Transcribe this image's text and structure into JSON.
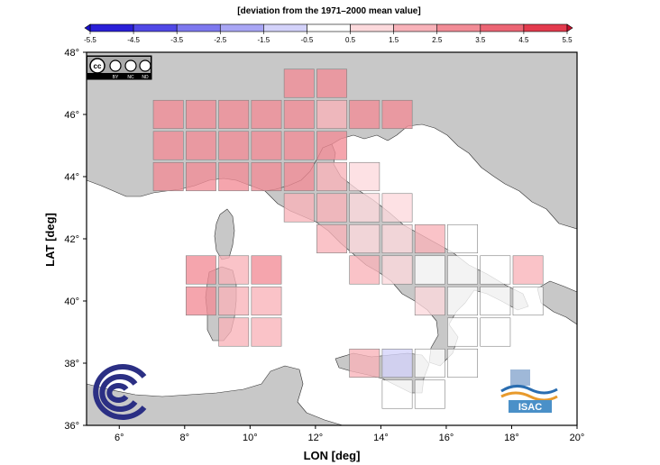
{
  "colorbar": {
    "title": "[deviation from the 1971–2000 mean value]",
    "tick_labels": [
      "-5.5",
      "-4.5",
      "-3.5",
      "-2.5",
      "-1.5",
      "-0.5",
      "0.5",
      "1.5",
      "2.5",
      "3.5",
      "4.5",
      "5.5"
    ],
    "colors": [
      "#2a1fd8",
      "#5048e6",
      "#7d78ef",
      "#a9a6f5",
      "#d3d2fa",
      "#ffffff",
      "#fcd9dc",
      "#f8b2b9",
      "#f28c96",
      "#ec6574",
      "#e33a4d"
    ]
  },
  "axes": {
    "xlabel": "LON [deg]",
    "ylabel": "LAT [deg]",
    "x_ticks": [
      "6°",
      "8°",
      "10°",
      "12°",
      "14°",
      "16°",
      "18°",
      "20°"
    ],
    "y_ticks": [
      "36°",
      "38°",
      "40°",
      "42°",
      "44°",
      "46°",
      "48°"
    ],
    "lon_range": [
      5,
      20
    ],
    "lat_range": [
      36,
      48
    ]
  },
  "license": {
    "cc": "cc",
    "labels": [
      "BY",
      "NC",
      "ND"
    ]
  },
  "logos": {
    "isac_text": "ISAC"
  },
  "colors": {
    "land": "#c8c8c8",
    "sea": "#ffffff",
    "grid_frame": "#c8c8c8",
    "cell_border": "#808080"
  },
  "grid_cells": [
    {
      "lon": 7.5,
      "lat": 46.0,
      "value": 3.0
    },
    {
      "lon": 8.5,
      "lat": 46.0,
      "value": 3.0
    },
    {
      "lon": 9.5,
      "lat": 46.0,
      "value": 3.0
    },
    {
      "lon": 10.5,
      "lat": 46.0,
      "value": 3.0
    },
    {
      "lon": 11.5,
      "lat": 47.0,
      "value": 3.0
    },
    {
      "lon": 11.5,
      "lat": 46.0,
      "value": 2.5
    },
    {
      "lon": 12.5,
      "lat": 47.0,
      "value": 2.5
    },
    {
      "lon": 12.5,
      "lat": 46.0,
      "value": 2.0
    },
    {
      "lon": 13.5,
      "lat": 46.0,
      "value": 3.2
    },
    {
      "lon": 14.5,
      "lat": 46.0,
      "value": 3.0
    },
    {
      "lon": 7.5,
      "lat": 45.0,
      "value": 3.0
    },
    {
      "lon": 8.5,
      "lat": 45.0,
      "value": 3.2
    },
    {
      "lon": 9.5,
      "lat": 45.0,
      "value": 3.2
    },
    {
      "lon": 10.5,
      "lat": 45.0,
      "value": 3.0
    },
    {
      "lon": 11.5,
      "lat": 45.0,
      "value": 2.5
    },
    {
      "lon": 12.5,
      "lat": 45.0,
      "value": 2.5
    },
    {
      "lon": 7.5,
      "lat": 44.0,
      "value": 2.8
    },
    {
      "lon": 8.5,
      "lat": 44.0,
      "value": 3.2
    },
    {
      "lon": 9.5,
      "lat": 44.0,
      "value": 3.3
    },
    {
      "lon": 10.5,
      "lat": 44.0,
      "value": 2.8
    },
    {
      "lon": 11.5,
      "lat": 44.0,
      "value": 2.6
    },
    {
      "lon": 12.5,
      "lat": 44.0,
      "value": 2.3
    },
    {
      "lon": 13.5,
      "lat": 44.0,
      "value": 1.2
    },
    {
      "lon": 11.5,
      "lat": 43.0,
      "value": 2.4
    },
    {
      "lon": 12.5,
      "lat": 43.0,
      "value": 1.8
    },
    {
      "lon": 13.5,
      "lat": 43.0,
      "value": 1.3
    },
    {
      "lon": 14.5,
      "lat": 43.0,
      "value": 1.3
    },
    {
      "lon": 12.5,
      "lat": 42.0,
      "value": 1.6
    },
    {
      "lon": 13.5,
      "lat": 42.0,
      "value": 1.4
    },
    {
      "lon": 14.5,
      "lat": 42.0,
      "value": 1.3
    },
    {
      "lon": 15.5,
      "lat": 42.0,
      "value": 1.6
    },
    {
      "lon": 16.5,
      "lat": 42.0,
      "value": 0.3
    },
    {
      "lon": 13.5,
      "lat": 41.0,
      "value": 1.6
    },
    {
      "lon": 14.5,
      "lat": 41.0,
      "value": 1.3
    },
    {
      "lon": 15.5,
      "lat": 41.0,
      "value": 0.3
    },
    {
      "lon": 16.5,
      "lat": 41.0,
      "value": 0.3
    },
    {
      "lon": 17.5,
      "lat": 41.0,
      "value": 0.3
    },
    {
      "lon": 18.5,
      "lat": 41.0,
      "value": 1.6
    },
    {
      "lon": 15.5,
      "lat": 40.0,
      "value": 1.4
    },
    {
      "lon": 16.5,
      "lat": 40.0,
      "value": 0.3
    },
    {
      "lon": 17.5,
      "lat": 40.0,
      "value": 0.3
    },
    {
      "lon": 18.5,
      "lat": 40.0,
      "value": 0.3
    },
    {
      "lon": 16.5,
      "lat": 39.0,
      "value": 0.3
    },
    {
      "lon": 17.5,
      "lat": 39.0,
      "value": 0.3
    },
    {
      "lon": 16.5,
      "lat": 38.0,
      "value": 0.3
    },
    {
      "lon": 13.5,
      "lat": 38.0,
      "value": 2.0
    },
    {
      "lon": 14.5,
      "lat": 38.0,
      "value": -1.2
    },
    {
      "lon": 15.5,
      "lat": 38.0,
      "value": 0.3
    },
    {
      "lon": 14.5,
      "lat": 37.0,
      "value": 0.3
    },
    {
      "lon": 15.5,
      "lat": 37.0,
      "value": 0.3
    },
    {
      "lon": 8.5,
      "lat": 41.0,
      "value": 2.8
    },
    {
      "lon": 9.5,
      "lat": 41.0,
      "value": 2.3
    },
    {
      "lon": 10.5,
      "lat": 41.0,
      "value": 2.8
    },
    {
      "lon": 8.5,
      "lat": 40.0,
      "value": 2.8
    },
    {
      "lon": 9.5,
      "lat": 40.0,
      "value": 1.6
    },
    {
      "lon": 10.5,
      "lat": 40.0,
      "value": 1.6
    },
    {
      "lon": 9.5,
      "lat": 39.0,
      "value": 1.6
    },
    {
      "lon": 10.5,
      "lat": 39.0,
      "value": 1.6
    }
  ]
}
